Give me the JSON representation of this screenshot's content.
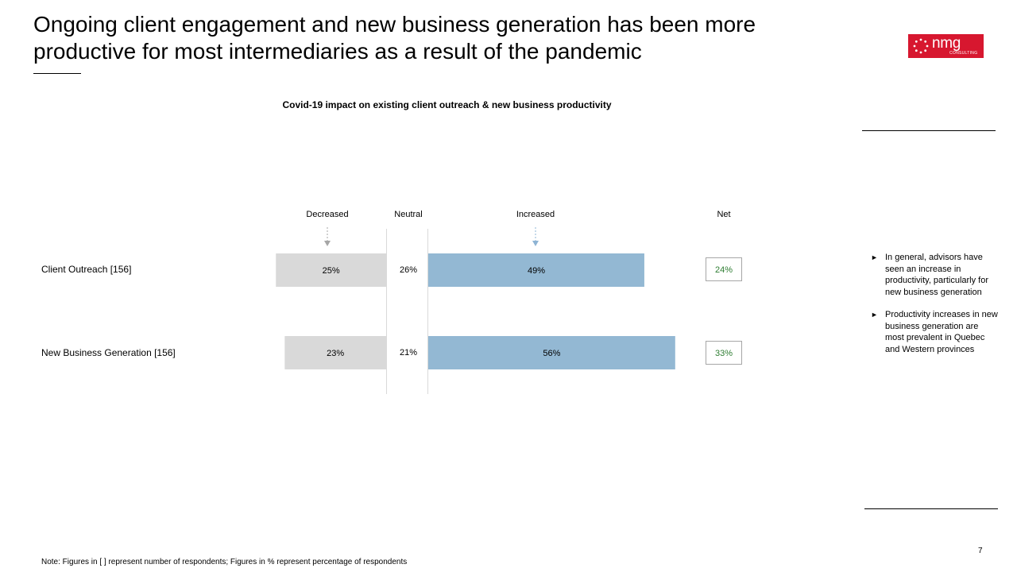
{
  "slide": {
    "title": "Ongoing client engagement and new business generation has been more productive for most intermediaries as a result of the pandemic",
    "logo": {
      "brand": "nmg",
      "sub": "CONSULTING"
    },
    "note": "Note: Figures in [ ] represent number of respondents; Figures in % represent percentage of respondents",
    "page_number": "7",
    "insights": [
      {
        "bullet": "►",
        "text": "In general, advisors have seen an increase in productivity, particularly for new business generation"
      },
      {
        "bullet": "►",
        "text": "Productivity increases in new business generation are most prevalent in Quebec and Western provinces"
      }
    ]
  },
  "chart_data": {
    "type": "bar",
    "title": "Covid-19 impact on existing client outreach & new business productivity",
    "column_headers": {
      "decreased": "Decreased",
      "neutral": "Neutral",
      "increased": "Increased",
      "net": "Net"
    },
    "categories": [
      "Client Outreach [156]",
      "New Business Generation [156]"
    ],
    "series": [
      {
        "name": "Decreased",
        "values": [
          25,
          23
        ],
        "labels": [
          "25%",
          "23%"
        ]
      },
      {
        "name": "Neutral",
        "values": [
          26,
          21
        ],
        "labels": [
          "26%",
          "21%"
        ]
      },
      {
        "name": "Increased",
        "values": [
          49,
          56
        ],
        "labels": [
          "49%",
          "56%"
        ]
      }
    ],
    "net": {
      "values": [
        24,
        33
      ],
      "labels": [
        "24%",
        "33%"
      ]
    },
    "colors": {
      "decreased": "#d9d9d9",
      "increased": "#93b8d3",
      "net_text": "#2e7d32",
      "arrow": "#8eb4d4"
    }
  }
}
